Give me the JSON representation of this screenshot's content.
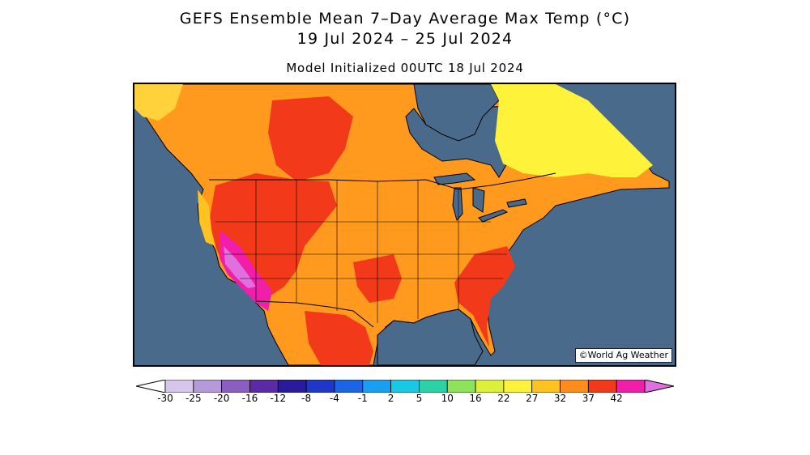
{
  "title": {
    "line1": "GEFS Ensemble Mean 7–Day Average Max Temp (°C)",
    "line2": "19 Jul 2024 – 25 Jul 2024",
    "line3": "Model Initialized 00UTC 18 Jul 2024"
  },
  "map": {
    "region": "North America",
    "credit": "©World Ag Weather",
    "ocean_color": "#4a6a8c",
    "land_fill_icon": "temperature-field"
  },
  "colorbar": {
    "tick_labels": [
      "-30",
      "-25",
      "-20",
      "-16",
      "-12",
      "-8",
      "-4",
      "-1",
      "2",
      "5",
      "10",
      "16",
      "22",
      "27",
      "32",
      "37",
      "42"
    ],
    "colors": [
      "#d6c6ec",
      "#b59ad8",
      "#8a5fc0",
      "#5b2aa6",
      "#2a1a9c",
      "#1f37c8",
      "#1c64e6",
      "#1a9ff0",
      "#19c9e3",
      "#2ad2a6",
      "#8de35a",
      "#dcf03a",
      "#fff23a",
      "#ffc321",
      "#ff8c1c",
      "#f23a1a",
      "#f01ea8",
      "#e070e0"
    ]
  }
}
